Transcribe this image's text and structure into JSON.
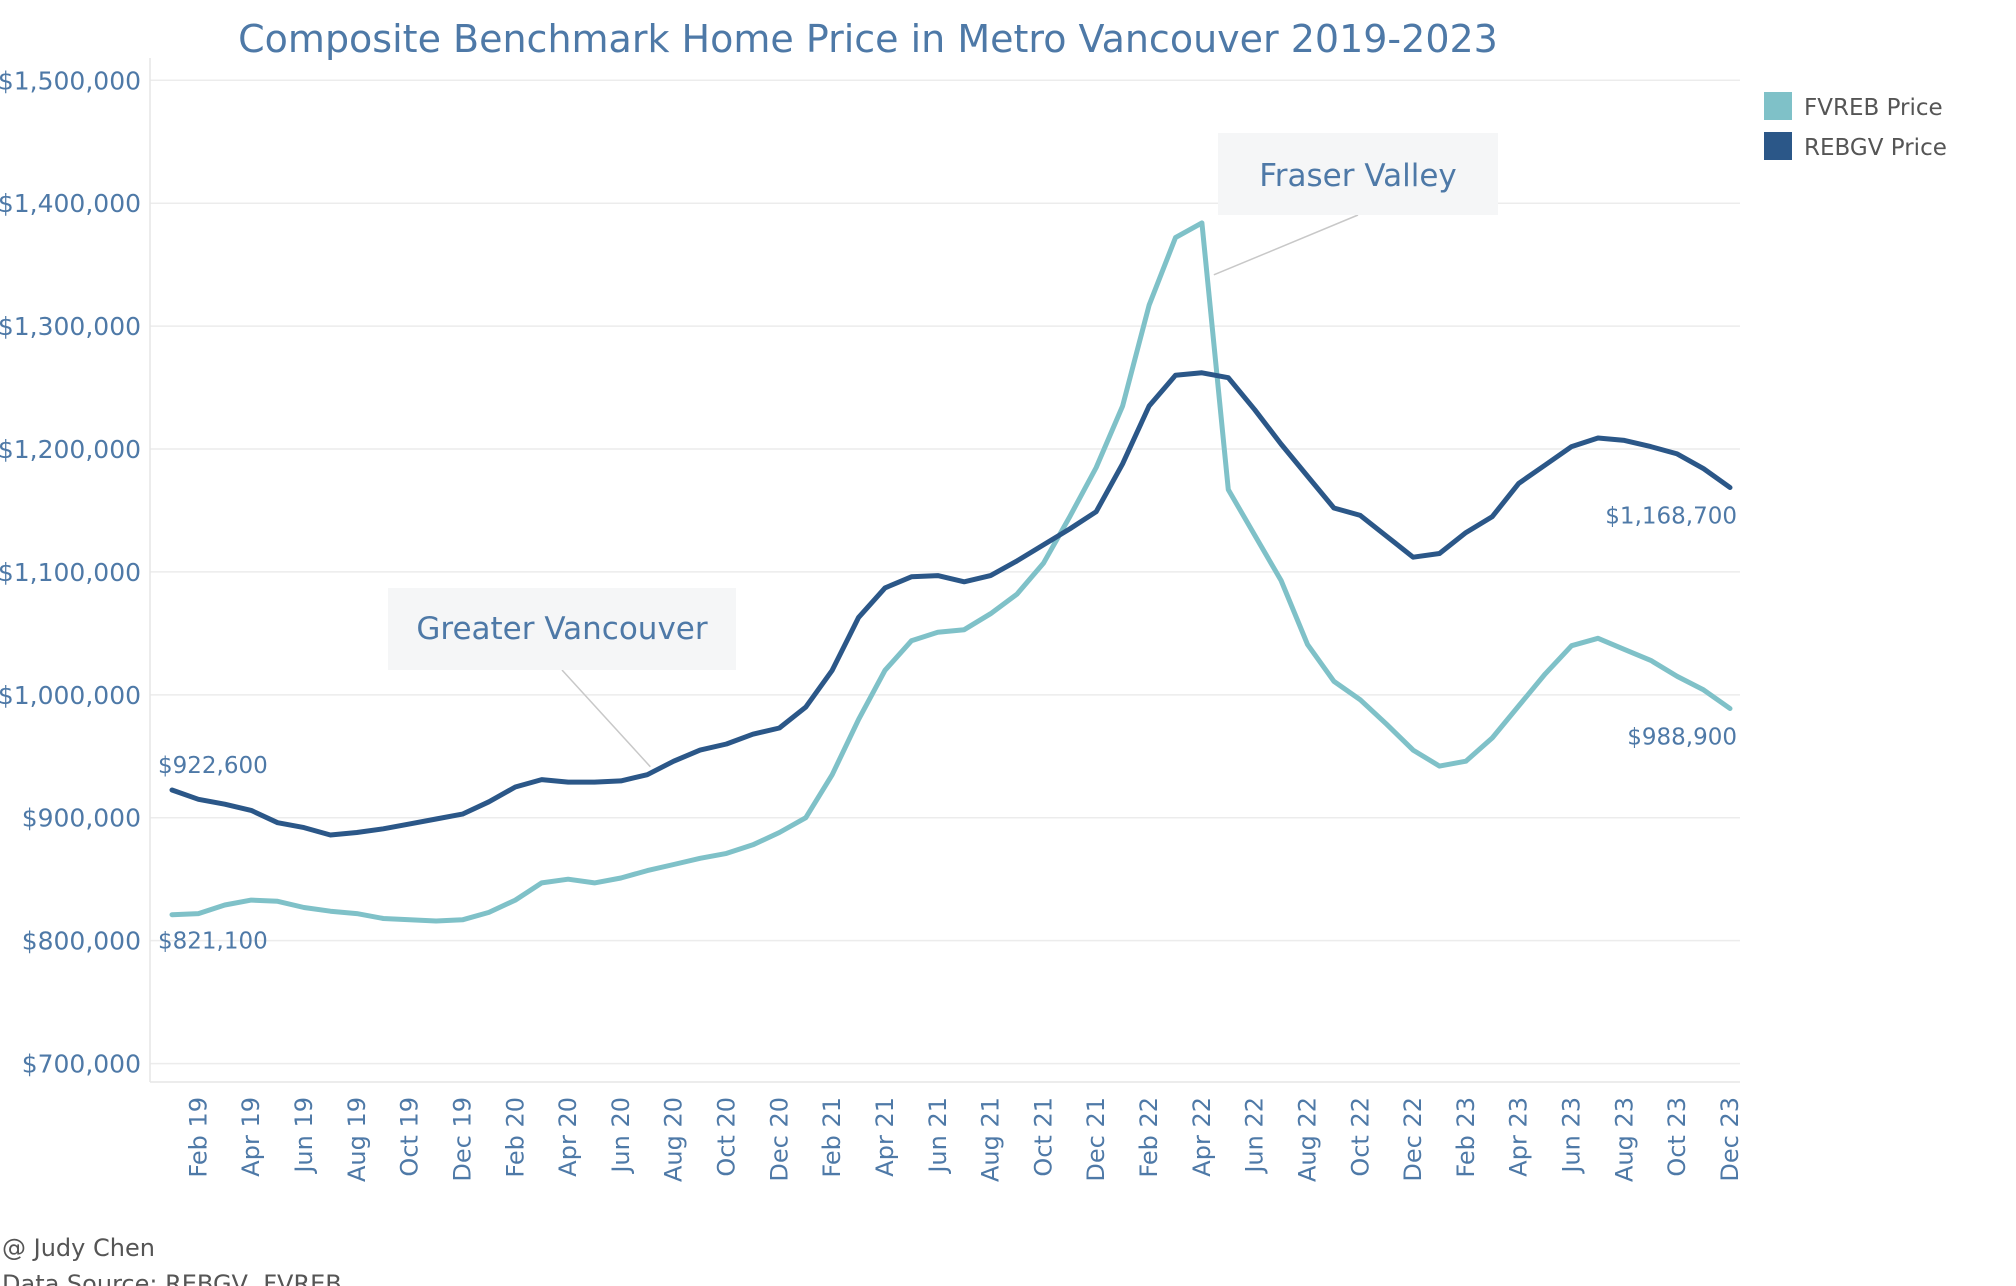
{
  "chart_data": {
    "type": "line",
    "title": "Composite Benchmark Home Price in Metro Vancouver 2019-2023",
    "xlabel": "",
    "ylabel": "",
    "ylim": [
      685000,
      1510000
    ],
    "yticks": [
      700000,
      800000,
      900000,
      1000000,
      1100000,
      1200000,
      1300000,
      1400000,
      1500000
    ],
    "ytick_labels": [
      "$700,000",
      "$800,000",
      "$900,000",
      "$1,000,000",
      "$1,100,000",
      "$1,200,000",
      "$1,300,000",
      "$1,400,000",
      "$1,500,000"
    ],
    "x": [
      "Jan 19",
      "Feb 19",
      "Mar 19",
      "Apr 19",
      "May 19",
      "Jun 19",
      "Jul 19",
      "Aug 19",
      "Sep 19",
      "Oct 19",
      "Nov 19",
      "Dec 19",
      "Jan 20",
      "Feb 20",
      "Mar 20",
      "Apr 20",
      "May 20",
      "Jun 20",
      "Jul 20",
      "Aug 20",
      "Sep 20",
      "Oct 20",
      "Nov 20",
      "Dec 20",
      "Jan 21",
      "Feb 21",
      "Mar 21",
      "Apr 21",
      "May 21",
      "Jun 21",
      "Jul 21",
      "Aug 21",
      "Sep 21",
      "Oct 21",
      "Nov 21",
      "Dec 21",
      "Jan 22",
      "Feb 22",
      "Mar 22",
      "Apr 22",
      "May 22",
      "Jun 22",
      "Jul 22",
      "Aug 22",
      "Sep 22",
      "Oct 22",
      "Nov 22",
      "Dec 22",
      "Jan 23",
      "Feb 23",
      "Mar 23",
      "Apr 23",
      "May 23",
      "Jun 23",
      "Jul 23",
      "Aug 23",
      "Sep 23",
      "Oct 23",
      "Nov 23",
      "Dec 23"
    ],
    "xtick_labels": [
      "Feb 19",
      "Apr 19",
      "Jun 19",
      "Aug 19",
      "Oct 19",
      "Dec 19",
      "Feb 20",
      "Apr 20",
      "Jun 20",
      "Aug 20",
      "Oct 20",
      "Dec 20",
      "Feb 21",
      "Apr 21",
      "Jun 21",
      "Aug 21",
      "Oct 21",
      "Dec 21",
      "Feb 22",
      "Apr 22",
      "Jun 22",
      "Aug 22",
      "Oct 22",
      "Dec 22",
      "Feb 23",
      "Apr 23",
      "Jun 23",
      "Aug 23",
      "Oct 23",
      "Dec 23"
    ],
    "series": [
      {
        "name": "REBGV Price",
        "color": "#2b5788",
        "values": [
          922600,
          915000,
          911000,
          906000,
          896000,
          892000,
          886000,
          888000,
          891000,
          895000,
          899000,
          903000,
          913000,
          925000,
          931000,
          929000,
          929000,
          930000,
          935000,
          946000,
          955000,
          960000,
          968000,
          973000,
          990000,
          1020000,
          1063000,
          1087000,
          1096000,
          1097000,
          1092000,
          1097000,
          1109000,
          1122000,
          1135000,
          1149000,
          1188000,
          1235000,
          1260000,
          1262000,
          1258000,
          1232000,
          1204000,
          1178000,
          1152000,
          1146000,
          1129000,
          1112000,
          1115000,
          1132000,
          1145000,
          1172000,
          1187000,
          1202000,
          1209000,
          1207000,
          1202000,
          1196000,
          1184000,
          1168700
        ]
      },
      {
        "name": "FVREB Price",
        "color": "#7fc1c8",
        "values": [
          821100,
          822000,
          829000,
          833000,
          832000,
          827000,
          824000,
          822000,
          818000,
          817000,
          816000,
          817000,
          823000,
          833000,
          847000,
          850000,
          847000,
          851000,
          857000,
          862000,
          867000,
          871000,
          878000,
          888000,
          900000,
          935000,
          980000,
          1020000,
          1044000,
          1051000,
          1053000,
          1066000,
          1082000,
          1107000,
          1145000,
          1185000,
          1235000,
          1317000,
          1372000,
          1384000,
          1167000,
          1130000,
          1093000,
          1041000,
          1011000,
          996000,
          976000,
          955000,
          942000,
          946000,
          965000,
          991000,
          1017000,
          1040000,
          1046000,
          1037000,
          1028000,
          1015000,
          1004000,
          988900
        ]
      }
    ],
    "legend": [
      {
        "label": "FVREB Price",
        "color": "#7fc1c8"
      },
      {
        "label": "REBGV Price",
        "color": "#2b5788"
      }
    ],
    "legend_position": "top-right",
    "annotations": [
      {
        "text": "Greater Vancouver",
        "target_series": "REBGV Price",
        "target_x": "Jul 20"
      },
      {
        "text": "Fraser Valley",
        "target_series": "FVREB Price",
        "target_x": "Apr 22"
      }
    ],
    "value_labels": [
      {
        "text": "$922,600",
        "series": "REBGV Price",
        "x": "Jan 19"
      },
      {
        "text": "$821,100",
        "series": "FVREB Price",
        "x": "Jan 19"
      },
      {
        "text": "$1,168,700",
        "series": "REBGV Price",
        "x": "Dec 23"
      },
      {
        "text": "$988,900",
        "series": "FVREB Price",
        "x": "Dec 23"
      }
    ],
    "grid": true
  },
  "footer": {
    "credit": "@ Judy Chen",
    "source": "Data Source: REBGV, FVREB"
  }
}
